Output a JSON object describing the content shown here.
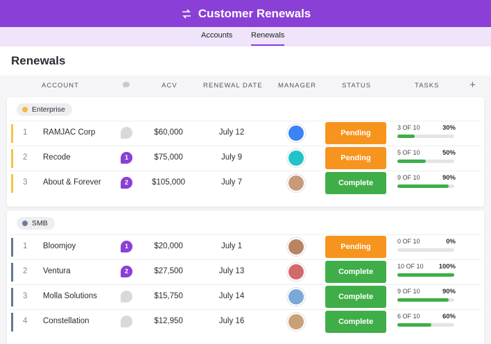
{
  "header": {
    "title": "Customer Renewals"
  },
  "tabs": [
    "Accounts",
    "Renewals"
  ],
  "page_title": "Renewals",
  "columns": {
    "account": "ACCOUNT",
    "acv": "ACV",
    "renewal_date": "RENEWAL DATE",
    "manager": "MANAGER",
    "status": "STATUS",
    "tasks": "TASKS",
    "add": "+"
  },
  "groups": [
    {
      "name": "Enterprise",
      "rows": [
        {
          "index": 1,
          "account": "RAMJAC Corp",
          "acv": "$60,000",
          "renewal_date": "July 12",
          "status": "Pending",
          "tasks": "3 OF 10",
          "progress": "30%"
        },
        {
          "index": 2,
          "account": "Recode",
          "comments": 1,
          "acv": "$75,000",
          "renewal_date": "July 9",
          "status": "Pending",
          "tasks": "5 OF 10",
          "progress": "50%"
        },
        {
          "index": 3,
          "account": "About & Forever",
          "comments": 2,
          "acv": "$105,000",
          "renewal_date": "July 7",
          "status": "Complete",
          "tasks": "9 OF 10",
          "progress": "90%"
        }
      ]
    },
    {
      "name": "SMB",
      "rows": [
        {
          "index": 1,
          "account": "Bloomjoy",
          "comments": 1,
          "acv": "$20,000",
          "renewal_date": "July 1",
          "status": "Pending",
          "tasks": "0 OF 10",
          "progress": "0%"
        },
        {
          "index": 2,
          "account": "Ventura",
          "comments": 2,
          "acv": "$27,500",
          "renewal_date": "July 13",
          "status": "Complete",
          "tasks": "10 OF 10",
          "progress": "100%"
        },
        {
          "index": 3,
          "account": "Molla Solutions",
          "acv": "$15,750",
          "renewal_date": "July 14",
          "status": "Complete",
          "tasks": "9 OF 10",
          "progress": "90%"
        },
        {
          "index": 4,
          "account": "Constellation",
          "acv": "$12,950",
          "renewal_date": "July 16",
          "status": "Complete",
          "tasks": "6 OF 10",
          "progress": "60%"
        }
      ]
    }
  ]
}
